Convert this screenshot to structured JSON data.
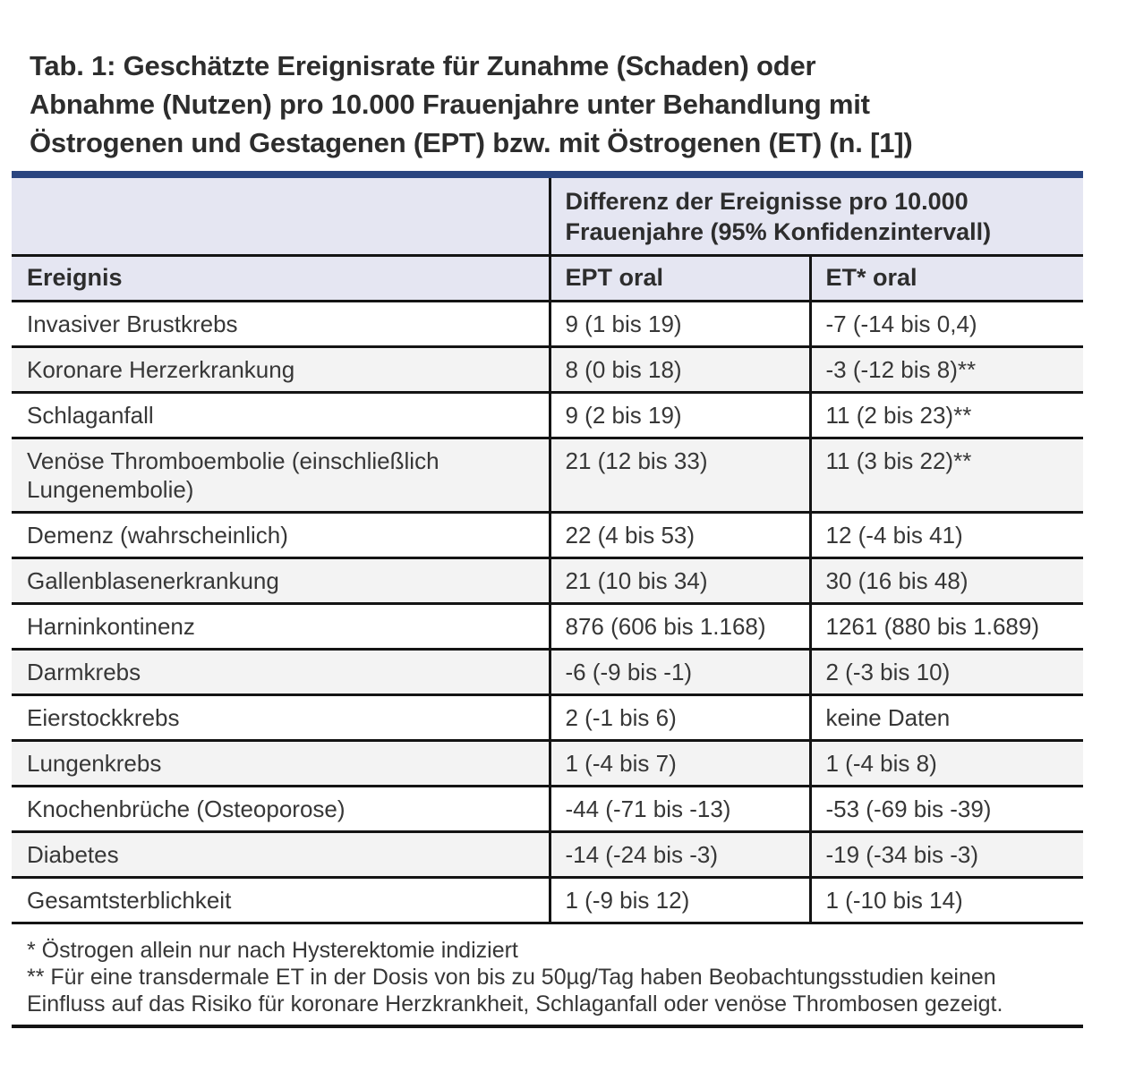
{
  "title": {
    "lines": [
      "Tab. 1: Geschätzte Ereignisrate für Zunahme (Schaden) oder",
      "Abnahme (Nutzen) pro 10.000 Frauenjahre unter Behandlung mit",
      "Östrogenen und Gestagenen (EPT) bzw. mit Östrogenen (ET) (n. [1])"
    ]
  },
  "table": {
    "group_header": "Differenz der Ereignisse pro 10.000 Frauenjahre (95% Konfidenzintervall)",
    "columns": [
      "Ereignis",
      "EPT oral",
      "ET* oral"
    ],
    "rows": [
      {
        "ereignis": "Invasiver Brustkrebs",
        "ept": "9 (1 bis 19)",
        "et": "-7 (-14 bis 0,4)"
      },
      {
        "ereignis": "Koronare Herzerkrankung",
        "ept": "8 (0 bis 18)",
        "et": "-3 (-12 bis 8)**"
      },
      {
        "ereignis": "Schlaganfall",
        "ept": "9 (2 bis 19)",
        "et": "11 (2 bis 23)**"
      },
      {
        "ereignis": "Venöse Thromboembolie (einschließlich Lungenembolie)",
        "ept": "21 (12 bis 33)",
        "et": "11 (3 bis 22)**"
      },
      {
        "ereignis": "Demenz (wahrscheinlich)",
        "ept": "22 (4 bis 53)",
        "et": "12 (-4 bis 41)"
      },
      {
        "ereignis": "Gallenblasenerkrankung",
        "ept": "21 (10 bis 34)",
        "et": "30 (16 bis 48)"
      },
      {
        "ereignis": "Harninkontinenz",
        "ept": "876 (606 bis 1.168)",
        "et": "1261 (880 bis 1.689)"
      },
      {
        "ereignis": "Darmkrebs",
        "ept": "-6 (-9 bis -1)",
        "et": "2 (-3 bis 10)"
      },
      {
        "ereignis": "Eierstockkrebs",
        "ept": "2 (-1 bis 6)",
        "et": "keine Daten"
      },
      {
        "ereignis": "Lungenkrebs",
        "ept": "1 (-4 bis 7)",
        "et": "1 (-4 bis 8)"
      },
      {
        "ereignis": "Knochenbrüche (Osteoporose)",
        "ept": "-44 (-71 bis -13)",
        "et": "-53 (-69 bis -39)"
      },
      {
        "ereignis": "Diabetes",
        "ept": "-14 (-24 bis -3)",
        "et": "-19 (-34 bis -3)"
      },
      {
        "ereignis": "Gesamtsterblichkeit",
        "ept": "1 (-9 bis 12)",
        "et": "1 (-10 bis 14)"
      }
    ]
  },
  "footnotes": [
    "* Östrogen allein nur nach Hysterektomie indiziert",
    "** Für eine transdermale ET in der Dosis von bis zu 50µg/Tag haben Beobachtungsstudien keinen Einfluss auf das Risiko für koronare Herzkrankheit, Schlaganfall oder venöse Thrombosen gezeigt."
  ],
  "colors": {
    "accent_bar": "#2a4580",
    "header_bg": "#e5e6f2",
    "stripe_bg": "#f3f3f3",
    "border": "#141414",
    "text": "#373737"
  }
}
